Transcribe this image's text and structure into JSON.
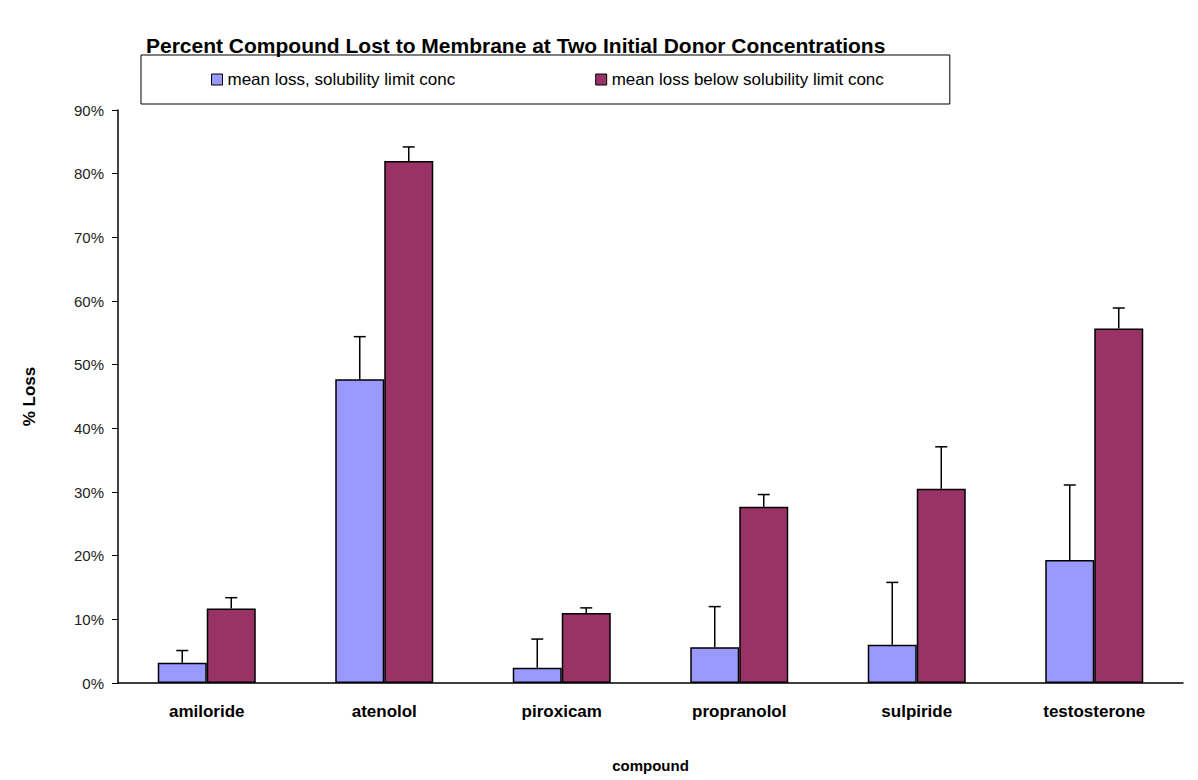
{
  "chart_data": {
    "type": "bar",
    "title": "Percent Compound Lost to Membrane at Two Initial Donor Concentrations",
    "x_label": "compound",
    "y_label": "% Loss",
    "categories": [
      "amiloride",
      "atenolol",
      "piroxicam",
      "propranolol",
      "sulpiride",
      "testosterone"
    ],
    "series": [
      {
        "name": "mean loss, solubility limit conc",
        "color": "#9999ff",
        "values": [
          3.2,
          47.7,
          2.4,
          5.6,
          6.0,
          19.3
        ],
        "errors": [
          1.9,
          6.7,
          4.5,
          6.4,
          9.8,
          11.8
        ]
      },
      {
        "name": "mean loss below solubility limit conc",
        "color": "#993366",
        "values": [
          11.7,
          82.0,
          11.0,
          27.7,
          30.5,
          55.7
        ],
        "errors": [
          1.7,
          2.2,
          0.8,
          1.9,
          6.6,
          3.2
        ]
      }
    ],
    "ylim": [
      0,
      90
    ],
    "yticks": [
      {
        "value": 0,
        "label": "0%"
      },
      {
        "value": 10,
        "label": "10%"
      },
      {
        "value": 20,
        "label": "20%"
      },
      {
        "value": 30,
        "label": "30%"
      },
      {
        "value": 40,
        "label": "40%"
      },
      {
        "value": 50,
        "label": "50%"
      },
      {
        "value": 60,
        "label": "60%"
      },
      {
        "value": 70,
        "label": "70%"
      },
      {
        "value": 80,
        "label": "80%"
      },
      {
        "value": 90,
        "label": "90%"
      }
    ],
    "grid": false,
    "legend": "top"
  }
}
